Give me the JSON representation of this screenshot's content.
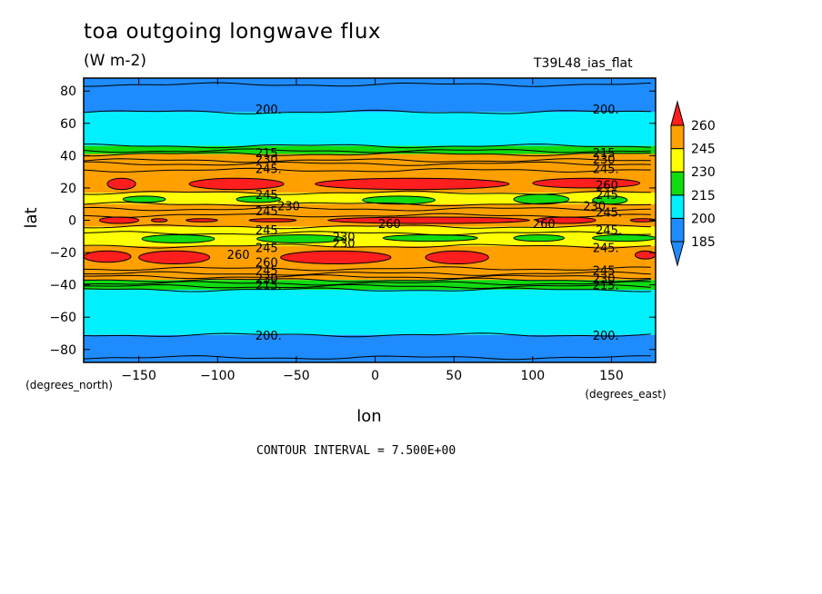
{
  "header": {
    "title": "toa outgoing longwave flux",
    "units": "(W m-2)",
    "run_name": "T39L48_ias_flat"
  },
  "footer": {
    "contour_interval": "CONTOUR INTERVAL = 7.500E+00"
  },
  "colors": {
    "b185": "#1e8cff",
    "b200": "#00f0ff",
    "b215": "#10dc10",
    "b230": "#ffff00",
    "b245": "#ffa000",
    "b260": "#ff1e1e"
  },
  "chart_data": {
    "type": "heatmap",
    "subtype": "filled contour map",
    "xlabel": "lon",
    "ylabel": "lat",
    "x_unit_label": "(degrees_east)",
    "y_unit_label": "(degrees_north)",
    "xlim": [
      -185,
      178
    ],
    "ylim": [
      -88,
      88
    ],
    "xticks": [
      -150,
      -100,
      -50,
      0,
      50,
      100,
      150
    ],
    "yticks": [
      -80,
      -60,
      -40,
      -20,
      0,
      20,
      40,
      60,
      80
    ],
    "contour_interval": 7.5,
    "colorbar": {
      "labels": [
        "185",
        "200",
        "215",
        "230",
        "245",
        "260"
      ],
      "extends": "both",
      "bands": [
        {
          "label": "<185",
          "color": "#1e8cff"
        },
        {
          "label": "185-200",
          "color": "#1e8cff"
        },
        {
          "label": "200-215",
          "color": "#00f0ff"
        },
        {
          "label": "215-230",
          "color": "#10dc10"
        },
        {
          "label": "230-245",
          "color": "#ffff00"
        },
        {
          "label": "245-260",
          "color": "#ffa000"
        },
        {
          "label": ">260",
          "color": "#ff1e1e"
        }
      ]
    },
    "zonal_bands": [
      {
        "lat": [
          67,
          88
        ],
        "value_range": "<200",
        "color": "#1e8cff"
      },
      {
        "lat": [
          46,
          67
        ],
        "value_range": "200-215",
        "color": "#00f0ff"
      },
      {
        "lat": [
          41,
          46
        ],
        "value_range": "215-230",
        "color": "#10dc10"
      },
      {
        "lat": [
          17,
          41
        ],
        "value_range": "245-260",
        "color": "#ffa000"
      },
      {
        "lat": [
          10,
          17
        ],
        "value_range": "230-245",
        "color": "#ffff00"
      },
      {
        "lat": [
          -4,
          10
        ],
        "value_range": "245-260",
        "color": "#ffa000"
      },
      {
        "lat": [
          -16,
          -4
        ],
        "value_range": "230-245",
        "color": "#ffff00"
      },
      {
        "lat": [
          -37,
          -16
        ],
        "value_range": "245-260",
        "color": "#ffa000"
      },
      {
        "lat": [
          -43,
          -37
        ],
        "value_range": "215-230",
        "color": "#10dc10"
      },
      {
        "lat": [
          -71,
          -43
        ],
        "value_range": "200-215",
        "color": "#00f0ff"
      },
      {
        "lat": [
          -88,
          -71
        ],
        "value_range": "<200",
        "color": "#1e8cff"
      }
    ],
    "patches": [
      {
        "value_range": ">260",
        "color": "#ff1e1e",
        "lon": [
          -170,
          -152
        ],
        "lat": [
          19,
          26
        ]
      },
      {
        "value_range": ">260",
        "color": "#ff1e1e",
        "lon": [
          -118,
          -58
        ],
        "lat": [
          19,
          26
        ]
      },
      {
        "value_range": ">260",
        "color": "#ff1e1e",
        "lon": [
          -38,
          85
        ],
        "lat": [
          19,
          26
        ]
      },
      {
        "value_range": ">260",
        "color": "#ff1e1e",
        "lon": [
          100,
          168
        ],
        "lat": [
          20,
          26
        ]
      },
      {
        "value_range": "215-230",
        "color": "#10dc10",
        "lon": [
          -160,
          -133
        ],
        "lat": [
          11,
          15
        ]
      },
      {
        "value_range": "215-230",
        "color": "#10dc10",
        "lon": [
          -88,
          -60
        ],
        "lat": [
          11,
          15
        ]
      },
      {
        "value_range": "215-230",
        "color": "#10dc10",
        "lon": [
          -8,
          38
        ],
        "lat": [
          10,
          15
        ]
      },
      {
        "value_range": "215-230",
        "color": "#10dc10",
        "lon": [
          88,
          123
        ],
        "lat": [
          10,
          16
        ]
      },
      {
        "value_range": "215-230",
        "color": "#10dc10",
        "lon": [
          138,
          160
        ],
        "lat": [
          10,
          15
        ]
      },
      {
        "value_range": ">260",
        "color": "#ff1e1e",
        "lon": [
          -175,
          -150
        ],
        "lat": [
          -2,
          2
        ]
      },
      {
        "value_range": ">260",
        "color": "#ff1e1e",
        "lon": [
          -142,
          -132
        ],
        "lat": [
          -1,
          1
        ]
      },
      {
        "value_range": ">260",
        "color": "#ff1e1e",
        "lon": [
          -120,
          -100
        ],
        "lat": [
          -1,
          1
        ]
      },
      {
        "value_range": ">260",
        "color": "#ff1e1e",
        "lon": [
          -80,
          -50
        ],
        "lat": [
          -1,
          1
        ]
      },
      {
        "value_range": ">260",
        "color": "#ff1e1e",
        "lon": [
          -30,
          98
        ],
        "lat": [
          -2,
          2
        ]
      },
      {
        "value_range": ">260",
        "color": "#ff1e1e",
        "lon": [
          102,
          140
        ],
        "lat": [
          -2,
          2
        ]
      },
      {
        "value_range": ">260",
        "color": "#ff1e1e",
        "lon": [
          162,
          178
        ],
        "lat": [
          -1,
          1
        ]
      },
      {
        "value_range": "215-230",
        "color": "#10dc10",
        "lon": [
          -148,
          -102
        ],
        "lat": [
          -14,
          -9
        ]
      },
      {
        "value_range": "215-230",
        "color": "#10dc10",
        "lon": [
          -75,
          -20
        ],
        "lat": [
          -14,
          -9
        ]
      },
      {
        "value_range": "215-230",
        "color": "#10dc10",
        "lon": [
          5,
          65
        ],
        "lat": [
          -13,
          -9
        ]
      },
      {
        "value_range": "215-230",
        "color": "#10dc10",
        "lon": [
          88,
          120
        ],
        "lat": [
          -13,
          -9
        ]
      },
      {
        "value_range": "215-230",
        "color": "#10dc10",
        "lon": [
          138,
          178
        ],
        "lat": [
          -13,
          -9
        ]
      },
      {
        "value_range": ">260",
        "color": "#ff1e1e",
        "lon": [
          -185,
          -155
        ],
        "lat": [
          -26,
          -19
        ]
      },
      {
        "value_range": ">260",
        "color": "#ff1e1e",
        "lon": [
          -150,
          -105
        ],
        "lat": [
          -27,
          -19
        ]
      },
      {
        "value_range": ">260",
        "color": "#ff1e1e",
        "lon": [
          -60,
          10
        ],
        "lat": [
          -27,
          -19
        ]
      },
      {
        "value_range": ">260",
        "color": "#ff1e1e",
        "lon": [
          32,
          72
        ],
        "lat": [
          -27,
          -19
        ]
      },
      {
        "value_range": ">260",
        "color": "#ff1e1e",
        "lon": [
          165,
          178
        ],
        "lat": [
          -24,
          -19
        ]
      }
    ],
    "contour_lines_lat": [
      84,
      67,
      46,
      43,
      41,
      37,
      35,
      31,
      17,
      10,
      7,
      3,
      -4,
      -8,
      -16,
      -30,
      -33,
      -35,
      -37,
      -39,
      -41,
      -43,
      -71,
      -85
    ],
    "contour_labels": [
      {
        "text": "200.",
        "lon": -76,
        "lat": 69
      },
      {
        "text": "200.",
        "lon": 138,
        "lat": 69
      },
      {
        "text": "215",
        "lon": -76,
        "lat": 42
      },
      {
        "text": "230",
        "lon": -76,
        "lat": 38
      },
      {
        "text": "245.",
        "lon": -76,
        "lat": 32
      },
      {
        "text": "215",
        "lon": 138,
        "lat": 42
      },
      {
        "text": "230",
        "lon": 138,
        "lat": 38
      },
      {
        "text": "245.",
        "lon": 138,
        "lat": 32
      },
      {
        "text": "260",
        "lon": 140,
        "lat": 22
      },
      {
        "text": "245",
        "lon": -76,
        "lat": 16
      },
      {
        "text": "245",
        "lon": 140,
        "lat": 16
      },
      {
        "text": "230",
        "lon": -62,
        "lat": 9
      },
      {
        "text": "245",
        "lon": -76,
        "lat": 6
      },
      {
        "text": "230",
        "lon": 132,
        "lat": 9
      },
      {
        "text": "245.",
        "lon": 140,
        "lat": 5
      },
      {
        "text": "260",
        "lon": 2,
        "lat": -2
      },
      {
        "text": "260",
        "lon": 100,
        "lat": -2
      },
      {
        "text": "245",
        "lon": -76,
        "lat": -6
      },
      {
        "text": "245.",
        "lon": 140,
        "lat": -6
      },
      {
        "text": "230",
        "lon": -27,
        "lat": -10
      },
      {
        "text": "230",
        "lon": -27,
        "lat": -14
      },
      {
        "text": "245",
        "lon": -76,
        "lat": -17
      },
      {
        "text": "245.",
        "lon": 138,
        "lat": -17
      },
      {
        "text": "260",
        "lon": -94,
        "lat": -21
      },
      {
        "text": "260",
        "lon": -76,
        "lat": -26
      },
      {
        "text": "245",
        "lon": -76,
        "lat": -31
      },
      {
        "text": "245",
        "lon": 138,
        "lat": -31
      },
      {
        "text": "230",
        "lon": -76,
        "lat": -36
      },
      {
        "text": "215.",
        "lon": -76,
        "lat": -40
      },
      {
        "text": "230",
        "lon": 138,
        "lat": -36
      },
      {
        "text": "215.",
        "lon": 138,
        "lat": -40
      },
      {
        "text": "200.",
        "lon": -76,
        "lat": -71
      },
      {
        "text": "200.",
        "lon": 138,
        "lat": -71
      }
    ]
  }
}
